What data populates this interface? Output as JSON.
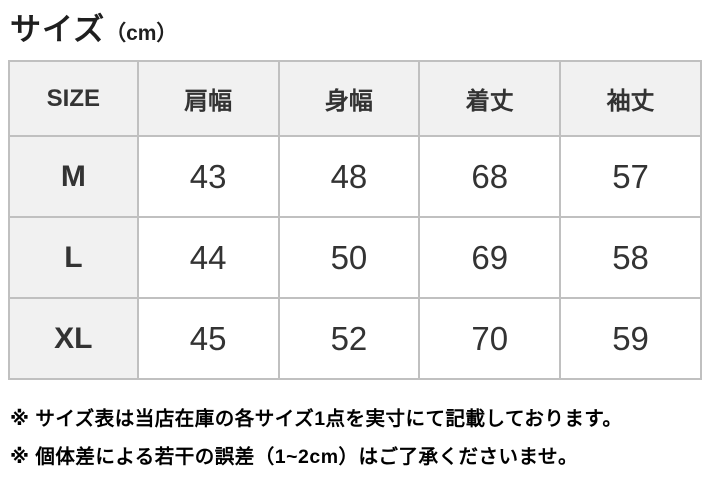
{
  "header": {
    "title": "サイズ",
    "unit": "（cm）"
  },
  "chart_data": {
    "type": "table",
    "title": "サイズ（cm）",
    "columns": [
      "SIZE",
      "肩幅",
      "身幅",
      "着丈",
      "袖丈"
    ],
    "rows": [
      [
        "M",
        43,
        48,
        68,
        57
      ],
      [
        "L",
        44,
        50,
        69,
        58
      ],
      [
        "XL",
        45,
        52,
        70,
        59
      ]
    ],
    "unit": "cm"
  },
  "notes": [
    "※ サイズ表は当店在庫の各サイズ1点を実寸にて記載しております。",
    "※ 個体差による若干の誤差（1~2cm）はご了承くださいませ。"
  ],
  "colors": {
    "table_border": "#c0c0c0",
    "header_cell_bg": "#f1f1f1",
    "data_cell_bg": "#ffffff",
    "table_text": "#333333",
    "note_text": "#000000"
  }
}
